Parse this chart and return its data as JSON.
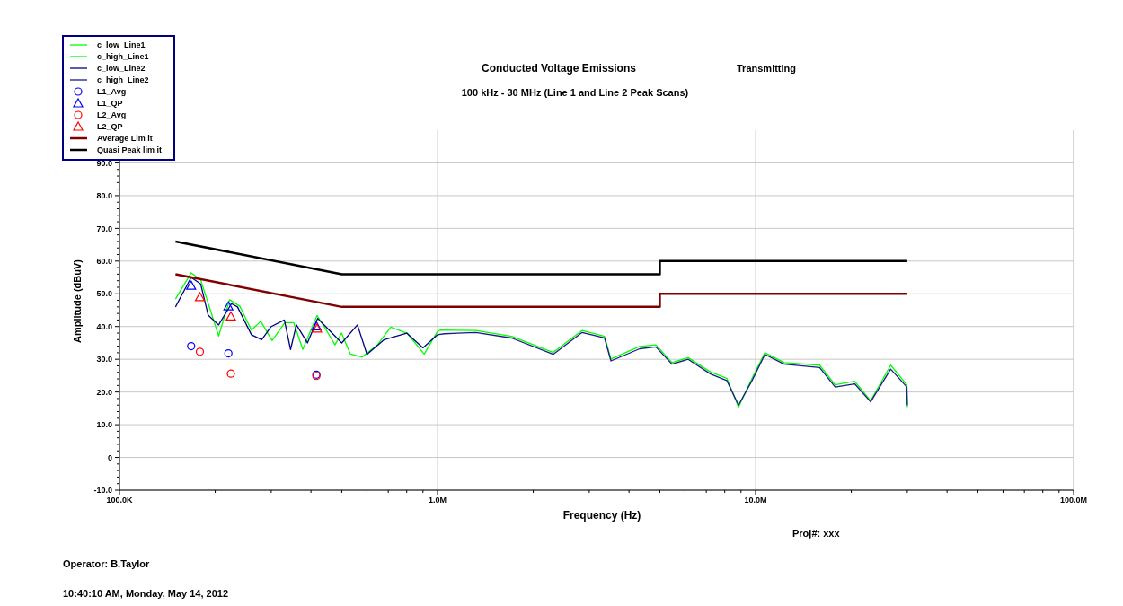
{
  "chart_data": {
    "type": "line",
    "title": "Conducted Voltage Emissions",
    "subtitle": "100 kHz - 30 MHz (Line 1 and Line 2 Peak Scans)",
    "xlabel": "Frequency (Hz)",
    "ylabel": "Amplitude (dBuV)",
    "log": "x",
    "grid": true,
    "legend": "top left",
    "xlim": [
      100000,
      100000000
    ],
    "ylim": [
      -10,
      100
    ],
    "xticks": [
      {
        "value": 100000,
        "label": "100.0K"
      },
      {
        "value": 200000,
        "label": null
      },
      {
        "value": 300000,
        "label": null
      },
      {
        "value": 400000,
        "label": null
      },
      {
        "value": 500000,
        "label": null
      },
      {
        "value": 600000,
        "label": null
      },
      {
        "value": 700000,
        "label": null
      },
      {
        "value": 800000,
        "label": null
      },
      {
        "value": 900000,
        "label": null
      },
      {
        "value": 1000000,
        "label": "1.0M"
      },
      {
        "value": 2000000,
        "label": null
      },
      {
        "value": 3000000,
        "label": null
      },
      {
        "value": 4000000,
        "label": null
      },
      {
        "value": 5000000,
        "label": null
      },
      {
        "value": 6000000,
        "label": null
      },
      {
        "value": 7000000,
        "label": null
      },
      {
        "value": 8000000,
        "label": null
      },
      {
        "value": 9000000,
        "label": null
      },
      {
        "value": 10000000,
        "label": "10.0M"
      },
      {
        "value": 20000000,
        "label": null
      },
      {
        "value": 30000000,
        "label": null
      },
      {
        "value": 40000000,
        "label": null
      },
      {
        "value": 50000000,
        "label": null
      },
      {
        "value": 60000000,
        "label": null
      },
      {
        "value": 70000000,
        "label": null
      },
      {
        "value": 80000000,
        "label": null
      },
      {
        "value": 90000000,
        "label": null
      },
      {
        "value": 100000000,
        "label": "100.0M"
      }
    ],
    "yticks": [
      {
        "value": -10,
        "label": "-10.0"
      },
      {
        "value": -8,
        "label": null
      },
      {
        "value": -6,
        "label": null
      },
      {
        "value": -4,
        "label": null
      },
      {
        "value": -2,
        "label": null
      },
      {
        "value": 0,
        "label": "0"
      },
      {
        "value": 2,
        "label": null
      },
      {
        "value": 4,
        "label": null
      },
      {
        "value": 6,
        "label": null
      },
      {
        "value": 8,
        "label": null
      },
      {
        "value": 10,
        "label": "10.0"
      },
      {
        "value": 12,
        "label": null
      },
      {
        "value": 14,
        "label": null
      },
      {
        "value": 16,
        "label": null
      },
      {
        "value": 18,
        "label": null
      },
      {
        "value": 20,
        "label": "20.0"
      },
      {
        "value": 22,
        "label": null
      },
      {
        "value": 24,
        "label": null
      },
      {
        "value": 26,
        "label": null
      },
      {
        "value": 28,
        "label": null
      },
      {
        "value": 30,
        "label": "30.0"
      },
      {
        "value": 32,
        "label": null
      },
      {
        "value": 34,
        "label": null
      },
      {
        "value": 36,
        "label": null
      },
      {
        "value": 38,
        "label": null
      },
      {
        "value": 40,
        "label": "40.0"
      },
      {
        "value": 42,
        "label": null
      },
      {
        "value": 44,
        "label": null
      },
      {
        "value": 46,
        "label": null
      },
      {
        "value": 48,
        "label": null
      },
      {
        "value": 50,
        "label": "50.0"
      },
      {
        "value": 52,
        "label": null
      },
      {
        "value": 54,
        "label": null
      },
      {
        "value": 56,
        "label": null
      },
      {
        "value": 58,
        "label": null
      },
      {
        "value": 60,
        "label": "60.0"
      },
      {
        "value": 62,
        "label": null
      },
      {
        "value": 64,
        "label": null
      },
      {
        "value": 66,
        "label": null
      },
      {
        "value": 68,
        "label": null
      },
      {
        "value": 70,
        "label": "70.0"
      },
      {
        "value": 72,
        "label": null
      },
      {
        "value": 74,
        "label": null
      },
      {
        "value": 76,
        "label": null
      },
      {
        "value": 78,
        "label": null
      },
      {
        "value": 80,
        "label": "80.0"
      },
      {
        "value": 82,
        "label": null
      },
      {
        "value": 84,
        "label": null
      },
      {
        "value": 86,
        "label": null
      },
      {
        "value": 88,
        "label": null
      },
      {
        "value": 90,
        "label": "90.0"
      }
    ],
    "series": [
      {
        "name": "c_low_Line1",
        "color": "#00ff00",
        "x": [
          150000,
          168000,
          180000,
          205000,
          222000,
          239000,
          260000,
          278000,
          302000,
          331000,
          353000,
          377000,
          418000,
          447000,
          476000,
          499000,
          532000,
          579000,
          647000,
          713000,
          802000,
          908000,
          1000000
        ],
        "values": [
          48.4,
          56.4,
          54.3,
          37.1,
          48.2,
          46.2,
          38.9,
          41.6,
          35.7,
          41.2,
          41.2,
          33,
          43.4,
          38.9,
          34.4,
          38,
          31.6,
          30.7,
          34.4,
          39.8,
          38,
          31.6,
          38.5
        ]
      },
      {
        "name": "c_high_Line1",
        "color": "#00ff00",
        "x": [
          1000000,
          1020000,
          1320000,
          1710000,
          2310000,
          2850000,
          3350000,
          3510000,
          4320000,
          4860000,
          5460000,
          6140000,
          7220000,
          8120000,
          8840000,
          9750000,
          10700000,
          12300000,
          15900000,
          17800000,
          20500000,
          23000000,
          26600000,
          29900000,
          30000000
        ],
        "values": [
          38.5,
          38.9,
          38.8,
          37,
          32.1,
          38.8,
          37,
          30.1,
          33.9,
          34.4,
          29,
          30.5,
          26.1,
          24.2,
          15.4,
          24.2,
          32,
          29,
          28.2,
          22.2,
          23.3,
          17.3,
          28.2,
          22.2,
          15.4
        ]
      },
      {
        "name": "c_low_Line2",
        "color": "#000080",
        "x": [
          150000,
          168000,
          180000,
          190000,
          205000,
          225000,
          235000,
          260000,
          280000,
          300000,
          330000,
          345000,
          360000,
          390000,
          420000,
          450000,
          500000,
          560000,
          600000,
          680000,
          800000,
          900000,
          1000000
        ],
        "values": [
          46,
          55,
          53,
          43.5,
          40.5,
          47,
          46,
          37.5,
          36,
          40,
          42,
          33,
          40.5,
          35,
          42.5,
          39.5,
          35,
          40.5,
          31.5,
          36,
          38,
          33.5,
          37.5
        ]
      },
      {
        "name": "c_high_Line2",
        "color": "#1a1a8c",
        "x": [
          1000000,
          1050000,
          1320000,
          1710000,
          2310000,
          2850000,
          3350000,
          3510000,
          4320000,
          4860000,
          5460000,
          6140000,
          7220000,
          8120000,
          8840000,
          9750000,
          10700000,
          12300000,
          15900000,
          17800000,
          20500000,
          23000000,
          26600000,
          29900000,
          30000000
        ],
        "values": [
          37.5,
          37.8,
          38.2,
          36.5,
          31.5,
          38.2,
          36.5,
          29.5,
          33.2,
          33.8,
          28.5,
          30,
          25.5,
          23.5,
          16,
          23.5,
          31.5,
          28.5,
          27.5,
          21.5,
          22.5,
          17,
          27,
          21.5,
          16
        ]
      },
      {
        "name": "L1_Avg",
        "type": "scatter",
        "color": "#0000ff",
        "marker": "circle",
        "x": [
          168000,
          220000,
          416000
        ],
        "values": [
          34,
          31.8,
          25.3
        ]
      },
      {
        "name": "L1_QP",
        "type": "scatter",
        "color": "#0000ff",
        "marker": "triangle",
        "x": [
          168000,
          220000,
          416000
        ],
        "values": [
          52.5,
          46.2,
          40.1
        ]
      },
      {
        "name": "L2_Avg",
        "type": "scatter",
        "color": "#ff0000",
        "marker": "circle",
        "x": [
          179000,
          224000,
          416000
        ],
        "values": [
          32.3,
          25.6,
          24.9
        ]
      },
      {
        "name": "L2_QP",
        "type": "scatter",
        "color": "#ff0000",
        "marker": "triangle",
        "x": [
          179000,
          224000,
          418000
        ],
        "values": [
          49,
          43.1,
          39.4
        ]
      },
      {
        "name": "Average Lim it",
        "color": "#800000",
        "x": [
          150000,
          500000,
          5000000,
          5000000,
          30000000
        ],
        "values": [
          56,
          46,
          46,
          50,
          50
        ]
      },
      {
        "name": "Quasi Peak lim it",
        "color": "#000000",
        "x": [
          150000,
          500000,
          5000000,
          5000000,
          30000000
        ],
        "values": [
          66,
          56,
          56,
          60,
          60
        ]
      }
    ],
    "annotations": [
      "Transmitting",
      "Proj#: xxx",
      "Operator: B.Taylor",
      "10:40:10 AM, Monday, May 14, 2012"
    ]
  }
}
